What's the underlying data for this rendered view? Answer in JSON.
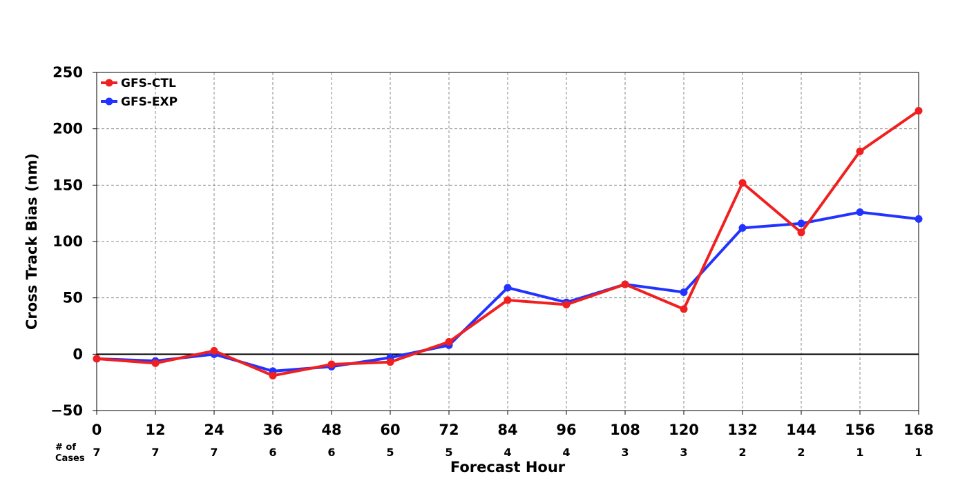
{
  "chart_data": {
    "type": "line",
    "title": "",
    "xlabel": "Forecast Hour",
    "ylabel": "Cross Track Bias (nm)",
    "x": [
      0,
      12,
      24,
      36,
      48,
      60,
      72,
      84,
      96,
      108,
      120,
      132,
      144,
      156,
      168
    ],
    "x_tick_labels": [
      "0",
      "12",
      "24",
      "36",
      "48",
      "60",
      "72",
      "84",
      "96",
      "108",
      "120",
      "132",
      "144",
      "156",
      "168"
    ],
    "xlim": [
      0,
      168
    ],
    "ylim": [
      -50,
      250
    ],
    "y_ticks": [
      -50,
      0,
      50,
      100,
      150,
      200,
      250
    ],
    "y_tick_labels": [
      "−50",
      "0",
      "50",
      "100",
      "150",
      "200",
      "250"
    ],
    "grid": true,
    "zero_line": true,
    "legend_position": "top-left",
    "cases_title": [
      "# of",
      "Cases"
    ],
    "cases": [
      "7",
      "7",
      "7",
      "6",
      "6",
      "5",
      "5",
      "4",
      "4",
      "3",
      "3",
      "2",
      "2",
      "1",
      "1"
    ],
    "series": [
      {
        "name": "GFS-EXP",
        "color": "#2233ff",
        "values": [
          -4,
          -6,
          0,
          -15,
          -11,
          -3,
          8,
          59,
          46,
          62,
          55,
          112,
          116,
          126,
          120
        ]
      },
      {
        "name": "GFS-CTL",
        "color": "#f02020",
        "values": [
          -4,
          -8,
          3,
          -19,
          -9,
          -7,
          11,
          48,
          44,
          62,
          40,
          152,
          108,
          180,
          216
        ]
      }
    ],
    "legend_order": [
      "GFS-CTL",
      "GFS-EXP"
    ]
  }
}
